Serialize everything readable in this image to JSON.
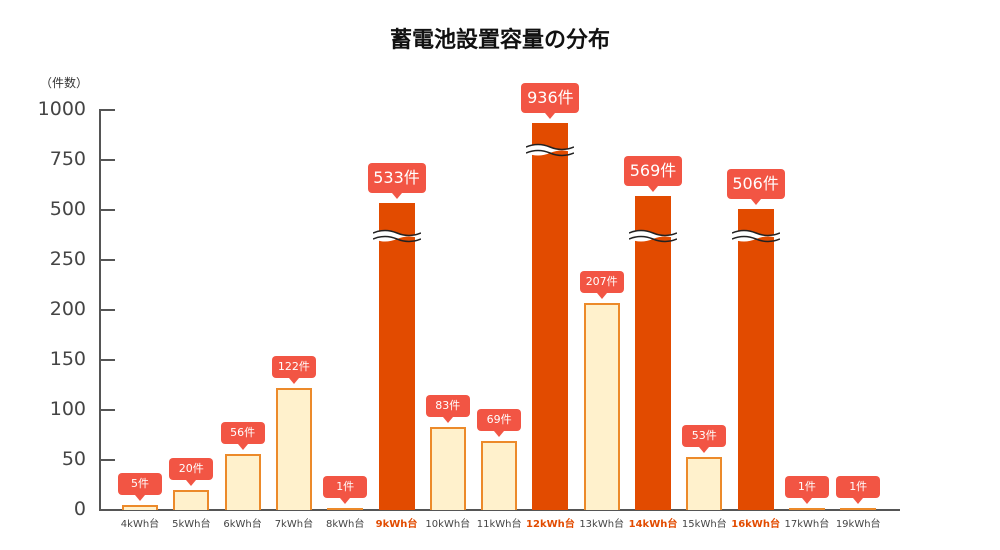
{
  "chart_data": {
    "type": "bar",
    "title": "蓄電池設置容量の分布",
    "xlabel": "",
    "ylabel": "（件数）",
    "y_axis_note": "Non-linear axis with broken scale: 0-250 in steps of 50, then 250, 500, 750, 1000",
    "yticks": [
      "0",
      "50",
      "100",
      "150",
      "200",
      "250",
      "500",
      "750",
      "1000"
    ],
    "categories": [
      "4kWh台",
      "5kWh台",
      "6kWh台",
      "7kWh台",
      "8kWh台",
      "9kWh台",
      "10kWh台",
      "11kWh台",
      "12kWh台",
      "13kWh台",
      "14kWh台",
      "15kWh台",
      "16kWh台",
      "17kWh台",
      "19kWh台"
    ],
    "values": [
      5,
      20,
      56,
      122,
      1,
      533,
      83,
      69,
      936,
      207,
      569,
      53,
      506,
      1,
      1
    ],
    "data_labels": [
      "5件",
      "20件",
      "56件",
      "122件",
      "1件",
      "533件",
      "83件",
      "69件",
      "936件",
      "207件",
      "569件",
      "53件",
      "506件",
      "1件",
      "1件"
    ],
    "highlighted": [
      "9kWh台",
      "12kWh台",
      "14kWh台",
      "16kWh台"
    ],
    "broken_bars": [
      "9kWh台",
      "12kWh台",
      "14kWh台",
      "16kWh台"
    ],
    "grid": false,
    "legend": null,
    "colors": {
      "normal_fill": "#fff1cc",
      "normal_border": "#ec8a2a",
      "highlight_fill": "#e24b00",
      "label_bubble": "#f25544",
      "highlight_text": "#e24b00"
    }
  }
}
